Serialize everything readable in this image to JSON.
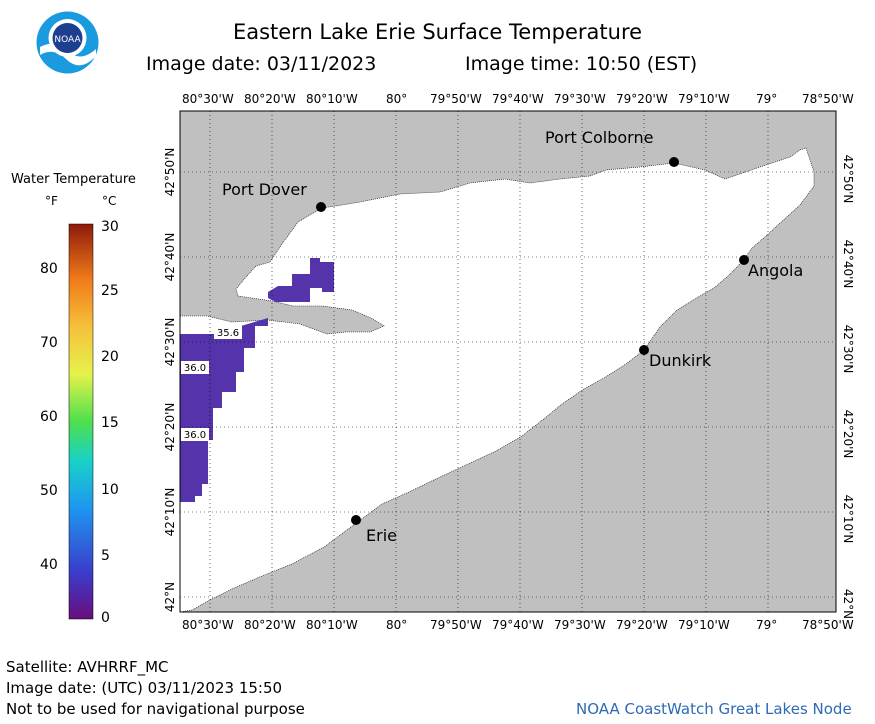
{
  "header": {
    "title": "Eastern Lake Erie Surface Temperature",
    "image_date": "Image date: 03/11/2023",
    "image_time": "Image time: 10:50 (EST)",
    "logo_text": "NOAA"
  },
  "legend": {
    "title": "Water Temperature",
    "unit_f": "°F",
    "unit_c": "°C",
    "f_ticks": [
      "80",
      "70",
      "60",
      "50",
      "40"
    ],
    "c_ticks": [
      "30",
      "25",
      "20",
      "15",
      "10",
      "5",
      "0"
    ]
  },
  "axes": {
    "lon_labels": [
      "80°30'W",
      "80°20'W",
      "80°10'W",
      "80°",
      "79°50'W",
      "79°40'W",
      "79°30'W",
      "79°20'W",
      "79°10'W",
      "79°",
      "78°50'W"
    ],
    "lat_labels": [
      "42°50'N",
      "42°40'N",
      "42°30'N",
      "42°20'N",
      "42°10'N",
      "42°N"
    ]
  },
  "places": {
    "port_colborne": "Port Colborne",
    "port_dover": "Port Dover",
    "angola": "Angola",
    "dunkirk": "Dunkirk",
    "erie": "Erie"
  },
  "readings": [
    "35.6",
    "36.0",
    "36.0"
  ],
  "footer": {
    "satellite": "Satellite: AVHRRF_MC",
    "utc_date": "Image date: (UTC) 03/11/2023  15:50",
    "disclaimer": "Not to be used for navigational purpose",
    "credit": "NOAA CoastWatch Great Lakes Node"
  },
  "colors": {
    "land": "#c0c0c0",
    "water": "#ffffff",
    "ice_cold": "#5533aa",
    "credit": "#2d6bb5"
  }
}
